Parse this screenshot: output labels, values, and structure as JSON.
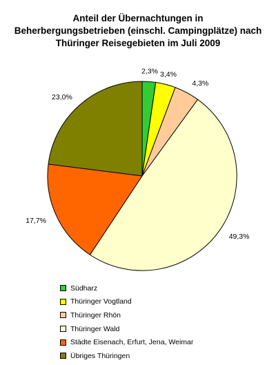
{
  "chart_data": {
    "type": "pie",
    "title": [
      "Anteil der Übernachtungen in",
      "Beherbergungsbetrieben (einschl. Campingplätze) nach",
      "Thüringer Reisegebieten im Juli 2009"
    ],
    "series": [
      {
        "labels": [
          "Südharz",
          "Thüringer Vogtland",
          "Thüringer Rhön",
          "Thüringer Wald",
          "Städte Eisenach, Erfurt, Jena, Weimar",
          "Übriges Thüringen"
        ],
        "values": [
          2.3,
          3.4,
          4.3,
          49.3,
          17.7,
          23.0
        ],
        "value_labels": [
          "2,3%",
          "3,4%",
          "4,3%",
          "49,3%",
          "17,7%",
          "23,0%"
        ],
        "colors": [
          "#33cc33",
          "#ffff00",
          "#ffcc99",
          "#ffffcc",
          "#ff6600",
          "#808000"
        ]
      }
    ],
    "legend_position": "bottom-left",
    "start_angle": "12 o'clock",
    "direction": "clockwise"
  }
}
